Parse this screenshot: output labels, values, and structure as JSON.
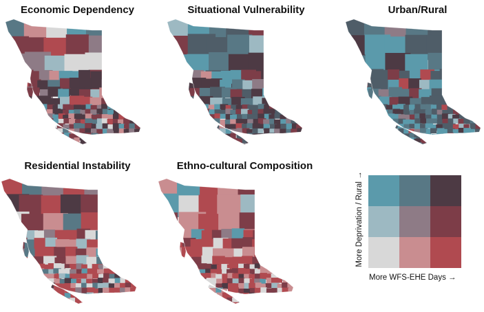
{
  "panels": [
    {
      "id": "economic",
      "title": "Economic Dependency",
      "palette": [
        "#4d3a44",
        "#7d3d48",
        "#b04a50",
        "#c98d90",
        "#8e7b86",
        "#d8d8d8",
        "#587885",
        "#5b9aab",
        "#9db9c2"
      ],
      "weights": [
        4,
        3,
        1,
        2,
        2,
        1,
        2,
        1,
        1
      ]
    },
    {
      "id": "situational",
      "title": "Situational Vulnerability",
      "palette": [
        "#4d3a44",
        "#4f5d68",
        "#7d3d48",
        "#5b9aab",
        "#b04a50",
        "#8e7b86",
        "#587885",
        "#9db9c2",
        "#c98d90"
      ],
      "weights": [
        6,
        3,
        2,
        2,
        1,
        1,
        2,
        1,
        1
      ]
    },
    {
      "id": "urban",
      "title": "Urban/Rural",
      "palette": [
        "#4f5d68",
        "#5b9aab",
        "#4d3a44",
        "#587885",
        "#7d3d48",
        "#9db9c2",
        "#8e7b86",
        "#b04a50"
      ],
      "weights": [
        6,
        4,
        2,
        2,
        1,
        1,
        1,
        1
      ]
    },
    {
      "id": "residential",
      "title": "Residential Instability",
      "palette": [
        "#b04a50",
        "#c98d90",
        "#7d3d48",
        "#d8d8d8",
        "#9db9c2",
        "#4d3a44",
        "#587885",
        "#5b9aab",
        "#8e7b86"
      ],
      "weights": [
        6,
        3,
        3,
        3,
        1,
        1,
        1,
        1,
        1
      ]
    },
    {
      "id": "ethno",
      "title": "Ethno-cultural Composition",
      "palette": [
        "#b04a50",
        "#c98d90",
        "#d8d8d8",
        "#7d3d48",
        "#9db9c2",
        "#8e7b86",
        "#4d3a44",
        "#5b9aab"
      ],
      "weights": [
        6,
        4,
        4,
        3,
        1,
        1,
        1,
        1
      ]
    }
  ],
  "legend": {
    "ylabel": "More Deprivation / Rural  →",
    "xlabel": "More WFS-EHE Days  →",
    "colors": [
      [
        "#5b9aab",
        "#587885",
        "#4d3a44"
      ],
      [
        "#9db9c2",
        "#8e7b86",
        "#7d3d48"
      ],
      [
        "#d8d8d8",
        "#c98d90",
        "#b04a50"
      ]
    ]
  }
}
